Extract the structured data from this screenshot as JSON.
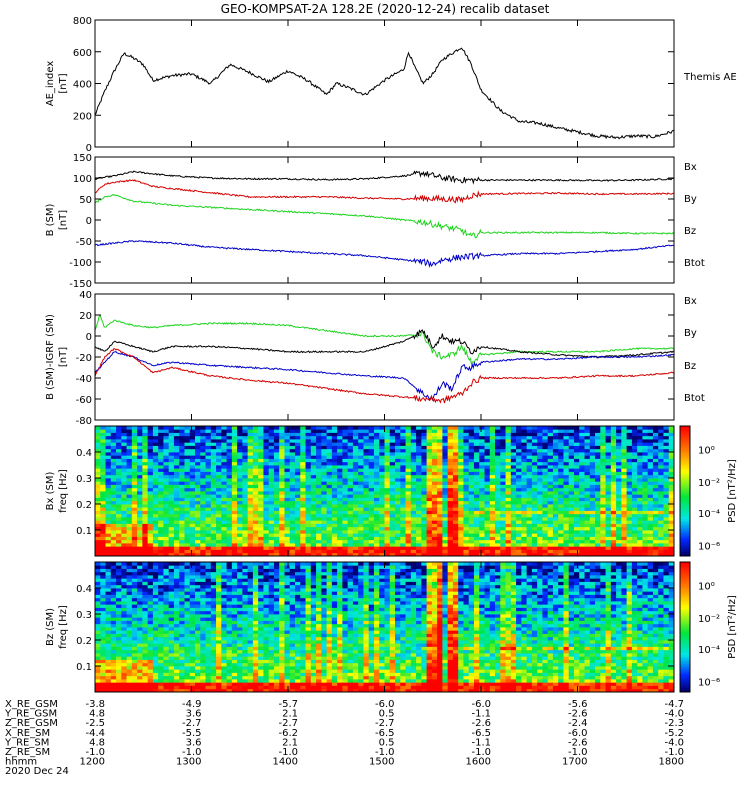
{
  "title": "GEO-KOMPSAT-2A 128.2E (2020-12-24) recalib dataset",
  "colors": {
    "black": "#000000",
    "red": "#d40000",
    "green": "#1ed41e",
    "blue": "#0000c8"
  },
  "chart_data": [
    {
      "type": "line",
      "panel": "ae",
      "ylabel": "AE_index\n[nT]",
      "ylim": [
        0,
        800
      ],
      "yticks": [
        "0",
        "200",
        "400",
        "600",
        "800"
      ],
      "xlim": [
        12.0,
        18.0
      ],
      "legend": [
        {
          "name": "Themis AE",
          "color": "black"
        }
      ],
      "series": [
        {
          "name": "Themis AE",
          "color": "black",
          "x": [
            12.0,
            12.1,
            12.2,
            12.3,
            12.4,
            12.5,
            12.6,
            12.8,
            13.0,
            13.2,
            13.4,
            13.6,
            13.8,
            14.0,
            14.2,
            14.4,
            14.5,
            14.6,
            14.8,
            15.0,
            15.2,
            15.25,
            15.3,
            15.4,
            15.5,
            15.6,
            15.8,
            15.9,
            16.0,
            16.2,
            16.4,
            16.6,
            16.8,
            17.0,
            17.2,
            17.4,
            17.6,
            17.8,
            18.0
          ],
          "values": [
            200,
            350,
            480,
            590,
            560,
            520,
            420,
            450,
            460,
            400,
            520,
            470,
            410,
            480,
            420,
            330,
            400,
            380,
            330,
            420,
            490,
            600,
            520,
            400,
            460,
            550,
            630,
            520,
            360,
            230,
            160,
            150,
            120,
            95,
            70,
            60,
            70,
            65,
            100
          ]
        }
      ]
    },
    {
      "type": "line",
      "panel": "b_sm",
      "ylabel": "B (SM)\n[nT]",
      "ylim": [
        -150,
        150
      ],
      "yticks": [
        "-150",
        "-100",
        "-50",
        "0",
        "50",
        "100",
        "150"
      ],
      "xlim": [
        12.0,
        18.0
      ],
      "legend": [
        {
          "name": "Bx",
          "color": "blue"
        },
        {
          "name": "By",
          "color": "green"
        },
        {
          "name": "Bz",
          "color": "red"
        },
        {
          "name": "Btot",
          "color": "black"
        }
      ],
      "series": [
        {
          "name": "Btot",
          "color": "black",
          "x": [
            12.0,
            12.2,
            12.4,
            12.8,
            13.2,
            13.6,
            14.0,
            14.4,
            14.8,
            15.2,
            15.4,
            15.6,
            15.8,
            16.0,
            16.4,
            16.8,
            17.2,
            17.6,
            18.0
          ],
          "values": [
            98,
            105,
            115,
            105,
            100,
            98,
            98,
            96,
            98,
            105,
            112,
            100,
            95,
            95,
            95,
            95,
            94,
            95,
            98
          ]
        },
        {
          "name": "Bz",
          "color": "red",
          "x": [
            12.0,
            12.1,
            12.2,
            12.4,
            12.6,
            12.8,
            13.2,
            13.6,
            14.0,
            14.4,
            14.8,
            15.2,
            15.4,
            15.6,
            15.8,
            15.9,
            16.0,
            16.4,
            16.8,
            17.2,
            17.6,
            18.0
          ],
          "values": [
            65,
            85,
            90,
            95,
            80,
            75,
            65,
            55,
            55,
            55,
            52,
            50,
            52,
            50,
            48,
            58,
            62,
            63,
            64,
            62,
            62,
            63
          ]
        },
        {
          "name": "By",
          "color": "green",
          "x": [
            12.0,
            12.1,
            12.2,
            12.4,
            12.6,
            12.8,
            13.2,
            13.6,
            14.0,
            14.4,
            14.8,
            15.2,
            15.4,
            15.5,
            15.6,
            15.8,
            15.9,
            16.0,
            16.4,
            16.8,
            17.2,
            17.6,
            18.0
          ],
          "values": [
            40,
            55,
            60,
            45,
            40,
            35,
            30,
            25,
            20,
            15,
            10,
            0,
            -5,
            -10,
            -15,
            -25,
            -40,
            -30,
            -30,
            -30,
            -30,
            -32,
            -32
          ]
        },
        {
          "name": "Bx",
          "color": "blue",
          "x": [
            12.0,
            12.2,
            12.4,
            12.8,
            13.2,
            13.6,
            14.0,
            14.4,
            14.8,
            15.2,
            15.4,
            15.5,
            15.6,
            15.8,
            16.0,
            16.4,
            16.8,
            17.2,
            17.6,
            18.0
          ],
          "values": [
            -60,
            -55,
            -50,
            -55,
            -65,
            -70,
            -75,
            -80,
            -85,
            -95,
            -100,
            -105,
            -95,
            -88,
            -85,
            -80,
            -80,
            -75,
            -70,
            -60
          ]
        }
      ]
    },
    {
      "type": "line",
      "panel": "b_igrf",
      "ylabel": "B (SM)-IGRF (SM)\n[nT]",
      "ylim": [
        -80,
        40
      ],
      "yticks": [
        "-80",
        "-60",
        "-40",
        "-20",
        "0",
        "20",
        "40"
      ],
      "xlim": [
        12.0,
        18.0
      ],
      "legend": [
        {
          "name": "Bx",
          "color": "blue"
        },
        {
          "name": "By",
          "color": "green"
        },
        {
          "name": "Bz",
          "color": "red"
        },
        {
          "name": "Btot",
          "color": "black"
        }
      ],
      "series": [
        {
          "name": "By",
          "color": "green",
          "x": [
            12.0,
            12.05,
            12.1,
            12.2,
            12.4,
            12.6,
            12.8,
            13.2,
            13.6,
            14.0,
            14.4,
            14.8,
            15.2,
            15.4,
            15.5,
            15.6,
            15.7,
            15.8,
            15.9,
            16.0,
            16.4,
            16.8,
            17.2,
            17.6,
            18.0
          ],
          "values": [
            5,
            20,
            8,
            15,
            10,
            8,
            10,
            12,
            12,
            10,
            5,
            0,
            0,
            2,
            -15,
            -20,
            -18,
            -10,
            -25,
            -18,
            -15,
            -15,
            -15,
            -12,
            -12
          ]
        },
        {
          "name": "Btot",
          "color": "black",
          "x": [
            12.0,
            12.1,
            12.2,
            12.4,
            12.6,
            12.8,
            13.2,
            13.6,
            14.0,
            14.4,
            14.8,
            15.2,
            15.4,
            15.5,
            15.6,
            15.7,
            15.8,
            15.9,
            16.0,
            16.4,
            16.8,
            17.2,
            17.6,
            18.0
          ],
          "values": [
            -10,
            -15,
            -5,
            -10,
            -15,
            -10,
            -10,
            -12,
            -15,
            -15,
            -15,
            -5,
            5,
            -10,
            0,
            -5,
            -5,
            -15,
            -10,
            -15,
            -18,
            -20,
            -18,
            -15
          ]
        },
        {
          "name": "Bx",
          "color": "blue",
          "x": [
            12.0,
            12.1,
            12.2,
            12.4,
            12.6,
            12.8,
            13.2,
            13.6,
            14.0,
            14.4,
            14.8,
            15.2,
            15.4,
            15.5,
            15.6,
            15.7,
            15.8,
            15.9,
            16.0,
            16.4,
            16.8,
            17.2,
            17.6,
            18.0
          ],
          "values": [
            -35,
            -25,
            -15,
            -20,
            -28,
            -25,
            -28,
            -30,
            -32,
            -35,
            -38,
            -40,
            -55,
            -60,
            -45,
            -50,
            -30,
            -30,
            -25,
            -22,
            -22,
            -20,
            -20,
            -18
          ]
        },
        {
          "name": "Bz",
          "color": "red",
          "x": [
            12.0,
            12.1,
            12.2,
            12.4,
            12.6,
            12.8,
            13.2,
            13.6,
            14.0,
            14.4,
            14.8,
            15.2,
            15.4,
            15.5,
            15.6,
            15.7,
            15.8,
            15.9,
            16.0,
            16.4,
            16.8,
            17.2,
            17.6,
            18.0
          ],
          "values": [
            -38,
            -20,
            -12,
            -20,
            -35,
            -30,
            -38,
            -42,
            -45,
            -50,
            -55,
            -58,
            -60,
            -60,
            -62,
            -58,
            -55,
            -45,
            -40,
            -40,
            -40,
            -38,
            -38,
            -35
          ]
        }
      ]
    },
    {
      "type": "heatmap",
      "panel": "spec_bx",
      "ylabel": "Bx (SM)\nfreq [Hz]",
      "ylim": [
        0,
        0.5
      ],
      "yticks": [
        "0.1",
        "0.2",
        "0.3",
        "0.4"
      ],
      "xlim": [
        12.0,
        18.0
      ],
      "colorbar": {
        "label": "PSD [nT²/Hz]",
        "ticks": [
          "10⁰",
          "10⁻²",
          "10⁻⁴",
          "10⁻⁶"
        ]
      }
    },
    {
      "type": "heatmap",
      "panel": "spec_bz",
      "ylabel": "Bz (SM)\nfreq [Hz]",
      "ylim": [
        0,
        0.5
      ],
      "yticks": [
        "0.1",
        "0.2",
        "0.3",
        "0.4"
      ],
      "xlim": [
        12.0,
        18.0
      ],
      "colorbar": {
        "label": "PSD [nT²/Hz]",
        "ticks": [
          "10⁰",
          "10⁻²",
          "10⁻⁴",
          "10⁻⁶"
        ]
      }
    }
  ],
  "ephemeris": {
    "rows": [
      {
        "label": "X_RE_GSM",
        "values": [
          "-3.8",
          "-4.9",
          "-5.7",
          "-6.0",
          "-6.0",
          "-5.6",
          "-4.7"
        ]
      },
      {
        "label": "Y_RE_GSM",
        "values": [
          "4.8",
          "3.6",
          "2.1",
          "0.5",
          "-1.1",
          "-2.6",
          "-4.0"
        ]
      },
      {
        "label": "Z_RE_GSM",
        "values": [
          "-2.5",
          "-2.7",
          "-2.7",
          "-2.7",
          "-2.6",
          "-2.4",
          "-2.3"
        ]
      },
      {
        "label": "X_RE_SM",
        "values": [
          "-4.4",
          "-5.5",
          "-6.2",
          "-6.5",
          "-6.5",
          "-6.0",
          "-5.2"
        ]
      },
      {
        "label": "Y_RE_SM",
        "values": [
          "4.8",
          "3.6",
          "2.1",
          "0.5",
          "-1.1",
          "-2.6",
          "-4.0"
        ]
      },
      {
        "label": "Z_RE_SM",
        "values": [
          "-1.0",
          "-1.0",
          "-1.0",
          "-1.0",
          "-1.0",
          "-1.0",
          "-1.0"
        ]
      },
      {
        "label": "hhmm",
        "values": [
          "1200",
          "1300",
          "1400",
          "1500",
          "1600",
          "1700",
          "1800"
        ]
      }
    ],
    "date": "2020 Dec 24"
  }
}
